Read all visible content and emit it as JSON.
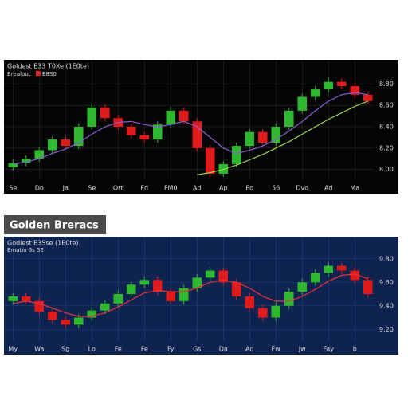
{
  "heading": "Golden Breracs",
  "chart_data": [
    {
      "type": "candlestick",
      "title": "Goldest E33 T0Xe (1E0te)",
      "legend": [
        {
          "label": "Brealout"
        },
        {
          "label": "E8S0",
          "color": "#e01b1b"
        }
      ],
      "background": "#050505",
      "grid_color": "#2a2a2a",
      "grid": true,
      "up_color": "#2fb82f",
      "down_color": "#e01b1b",
      "categories": [
        "Se",
        null,
        "Do",
        null,
        "Ja",
        null,
        "Se",
        null,
        "Ort",
        null,
        "Fd",
        null,
        "FM0",
        null,
        "Ad",
        null,
        "Ap",
        null,
        "Po",
        null,
        "56",
        null,
        "Dvo",
        null,
        "Ad",
        null,
        "Ma",
        null
      ],
      "open": [
        8.02,
        8.06,
        8.1,
        8.18,
        8.28,
        8.22,
        8.4,
        8.58,
        8.48,
        8.4,
        8.32,
        8.28,
        8.42,
        8.55,
        8.45,
        8.2,
        7.96,
        8.05,
        8.22,
        8.35,
        8.25,
        8.4,
        8.55,
        8.68,
        8.75,
        8.82,
        8.78,
        8.7
      ],
      "high": [
        8.09,
        8.13,
        8.21,
        8.31,
        8.31,
        8.43,
        8.62,
        8.61,
        8.51,
        8.43,
        8.35,
        8.45,
        8.59,
        8.58,
        8.48,
        8.23,
        8.08,
        8.25,
        8.38,
        8.38,
        8.43,
        8.58,
        8.71,
        8.78,
        8.86,
        8.85,
        8.81,
        8.73
      ],
      "low": [
        7.99,
        8.03,
        8.07,
        8.15,
        8.19,
        8.19,
        8.37,
        8.45,
        8.37,
        8.29,
        8.25,
        8.25,
        8.39,
        8.42,
        8.17,
        7.93,
        7.93,
        8.02,
        8.19,
        8.22,
        8.22,
        8.37,
        8.52,
        8.65,
        8.72,
        8.75,
        8.67,
        8.61
      ],
      "close": [
        8.06,
        8.1,
        8.18,
        8.28,
        8.22,
        8.4,
        8.58,
        8.48,
        8.4,
        8.32,
        8.28,
        8.42,
        8.55,
        8.45,
        8.2,
        7.96,
        8.05,
        8.22,
        8.35,
        8.25,
        8.4,
        8.55,
        8.68,
        8.75,
        8.82,
        8.78,
        8.7,
        8.64
      ],
      "series": [
        {
          "color": "#8a5cd6",
          "values": [
            8.05,
            8.07,
            8.1,
            8.15,
            8.19,
            8.25,
            8.33,
            8.4,
            8.44,
            8.45,
            8.42,
            8.4,
            8.42,
            8.45,
            8.4,
            8.3,
            8.2,
            8.15,
            8.18,
            8.22,
            8.28,
            8.36,
            8.45,
            8.55,
            8.64,
            8.7,
            8.72,
            8.7
          ]
        },
        {
          "color": "#9bd84a",
          "values": [
            null,
            null,
            null,
            null,
            null,
            null,
            null,
            null,
            null,
            null,
            null,
            null,
            null,
            null,
            7.95,
            7.97,
            8.0,
            8.04,
            8.09,
            8.14,
            8.2,
            8.26,
            8.33,
            8.4,
            8.47,
            8.53,
            8.59,
            8.64
          ]
        }
      ],
      "ylim": [
        7.9,
        8.9
      ],
      "yticks": [
        {
          "value": 8.0,
          "label": "8.00"
        },
        {
          "value": 8.2,
          "label": "8.20"
        },
        {
          "value": 8.4,
          "label": "8.40"
        },
        {
          "value": 8.6,
          "label": "8.60"
        },
        {
          "value": 8.8,
          "label": "8.80"
        }
      ]
    },
    {
      "type": "candlestick",
      "title": "Godlest E3Sse (1E0te)",
      "subtitle": "Ematio 6s 5E",
      "background": "#0e2350",
      "grid_color": "#27427a",
      "grid": true,
      "up_color": "#2fb82f",
      "down_color": "#e01b1b",
      "categories": [
        "My",
        null,
        "Wa",
        null,
        "Sg",
        null,
        "Lo",
        null,
        "Fe",
        null,
        "Fe",
        null,
        "Fy",
        null,
        "Gs",
        null,
        "Da",
        null,
        "Ad",
        null,
        "Fw",
        null,
        "Jw",
        null,
        "Fay",
        null,
        "b",
        null
      ],
      "open": [
        9.44,
        9.48,
        9.44,
        9.35,
        9.28,
        9.24,
        9.3,
        9.36,
        9.42,
        9.5,
        9.58,
        9.62,
        9.52,
        9.44,
        9.55,
        9.64,
        9.7,
        9.6,
        9.48,
        9.38,
        9.3,
        9.4,
        9.52,
        9.6,
        9.68,
        9.74,
        9.7,
        9.62
      ],
      "high": [
        9.51,
        9.51,
        9.47,
        9.38,
        9.31,
        9.33,
        9.39,
        9.45,
        9.53,
        9.61,
        9.65,
        9.65,
        9.55,
        9.58,
        9.67,
        9.73,
        9.73,
        9.63,
        9.51,
        9.41,
        9.43,
        9.55,
        9.63,
        9.71,
        9.77,
        9.77,
        9.73,
        9.65
      ],
      "low": [
        9.41,
        9.41,
        9.32,
        9.25,
        9.21,
        9.21,
        9.27,
        9.33,
        9.39,
        9.47,
        9.55,
        9.49,
        9.41,
        9.41,
        9.52,
        9.61,
        9.57,
        9.45,
        9.35,
        9.27,
        9.27,
        9.37,
        9.49,
        9.57,
        9.65,
        9.67,
        9.59,
        9.47
      ],
      "close": [
        9.48,
        9.44,
        9.35,
        9.28,
        9.24,
        9.3,
        9.36,
        9.42,
        9.5,
        9.58,
        9.62,
        9.52,
        9.44,
        9.55,
        9.64,
        9.7,
        9.6,
        9.48,
        9.38,
        9.3,
        9.4,
        9.52,
        9.6,
        9.68,
        9.74,
        9.7,
        9.62,
        9.5
      ],
      "series": [
        {
          "color": "#e8333a",
          "values": [
            9.42,
            9.44,
            9.42,
            9.38,
            9.34,
            9.31,
            9.31,
            9.34,
            9.39,
            9.45,
            9.51,
            9.53,
            9.52,
            9.52,
            9.55,
            9.6,
            9.62,
            9.6,
            9.55,
            9.48,
            9.44,
            9.44,
            9.48,
            9.54,
            9.61,
            9.66,
            9.67,
            9.63
          ]
        }
      ],
      "ylim": [
        9.1,
        9.9
      ],
      "yticks": [
        {
          "value": 9.2,
          "label": "9.20"
        },
        {
          "value": 9.4,
          "label": "9.40"
        },
        {
          "value": 9.6,
          "label": "9.60"
        },
        {
          "value": 9.8,
          "label": "9.80"
        }
      ]
    }
  ]
}
